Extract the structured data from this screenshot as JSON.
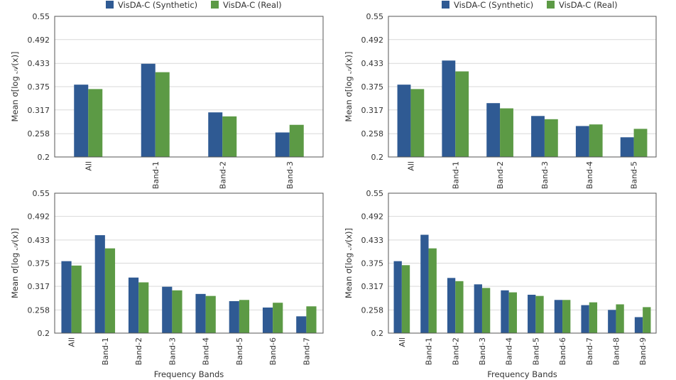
{
  "legend": {
    "synthetic_label": "VisDA-C (Synthetic)",
    "real_label": "VisDA-C (Real)"
  },
  "colors": {
    "synthetic": "#2f5a93",
    "real": "#5c9a45"
  },
  "chart_data": [
    {
      "type": "bar",
      "ylabel": "Mean σ[log 𝒜(x)]",
      "xlabel": "",
      "ylim": [
        0.2,
        0.55
      ],
      "yticks": [
        "0.2",
        "0.258",
        "0.317",
        "0.375",
        "0.433",
        "0.492",
        "0.55"
      ],
      "categories": [
        "All",
        "Band-1",
        "Band-2",
        "Band-3"
      ],
      "series": [
        {
          "name": "VisDA-C (Synthetic)",
          "values": [
            0.38,
            0.432,
            0.311,
            0.261
          ]
        },
        {
          "name": "VisDA-C (Real)",
          "values": [
            0.369,
            0.411,
            0.301,
            0.28
          ]
        }
      ]
    },
    {
      "type": "bar",
      "ylabel": "Mean σ[log 𝒜(x)]",
      "xlabel": "",
      "ylim": [
        0.2,
        0.55
      ],
      "yticks": [
        "0.2",
        "0.258",
        "0.317",
        "0.375",
        "0.433",
        "0.492",
        "0.55"
      ],
      "categories": [
        "All",
        "Band-1",
        "Band-2",
        "Band-3",
        "Band-4",
        "Band-5"
      ],
      "series": [
        {
          "name": "VisDA-C (Synthetic)",
          "values": [
            0.38,
            0.44,
            0.334,
            0.302,
            0.277,
            0.249
          ]
        },
        {
          "name": "VisDA-C (Real)",
          "values": [
            0.369,
            0.413,
            0.321,
            0.294,
            0.281,
            0.27
          ]
        }
      ]
    },
    {
      "type": "bar",
      "ylabel": "Mean σ[log 𝒜(x)]",
      "xlabel": "Frequency Bands",
      "ylim": [
        0.2,
        0.55
      ],
      "yticks": [
        "0.2",
        "0.258",
        "0.317",
        "0.375",
        "0.433",
        "0.492",
        "0.55"
      ],
      "categories": [
        "All",
        "Band-1",
        "Band-2",
        "Band-3",
        "Band-4",
        "Band-5",
        "Band-6",
        "Band-7"
      ],
      "series": [
        {
          "name": "VisDA-C (Synthetic)",
          "values": [
            0.38,
            0.445,
            0.339,
            0.316,
            0.298,
            0.28,
            0.264,
            0.242
          ]
        },
        {
          "name": "VisDA-C (Real)",
          "values": [
            0.369,
            0.412,
            0.327,
            0.307,
            0.293,
            0.283,
            0.276,
            0.267
          ]
        }
      ]
    },
    {
      "type": "bar",
      "ylabel": "Mean σ[log 𝒜(x)]",
      "xlabel": "Frequency Bands",
      "ylim": [
        0.2,
        0.55
      ],
      "yticks": [
        "0.2",
        "0.258",
        "0.317",
        "0.375",
        "0.433",
        "0.492",
        "0.55"
      ],
      "categories": [
        "All",
        "Band-1",
        "Band-2",
        "Band-3",
        "Band-4",
        "Band-5",
        "Band-6",
        "Band-7",
        "Band-8",
        "Band-9"
      ],
      "series": [
        {
          "name": "VisDA-C (Synthetic)",
          "values": [
            0.38,
            0.446,
            0.338,
            0.322,
            0.307,
            0.296,
            0.283,
            0.27,
            0.258,
            0.24
          ]
        },
        {
          "name": "VisDA-C (Real)",
          "values": [
            0.37,
            0.412,
            0.33,
            0.313,
            0.302,
            0.293,
            0.283,
            0.277,
            0.272,
            0.265
          ]
        }
      ]
    }
  ]
}
